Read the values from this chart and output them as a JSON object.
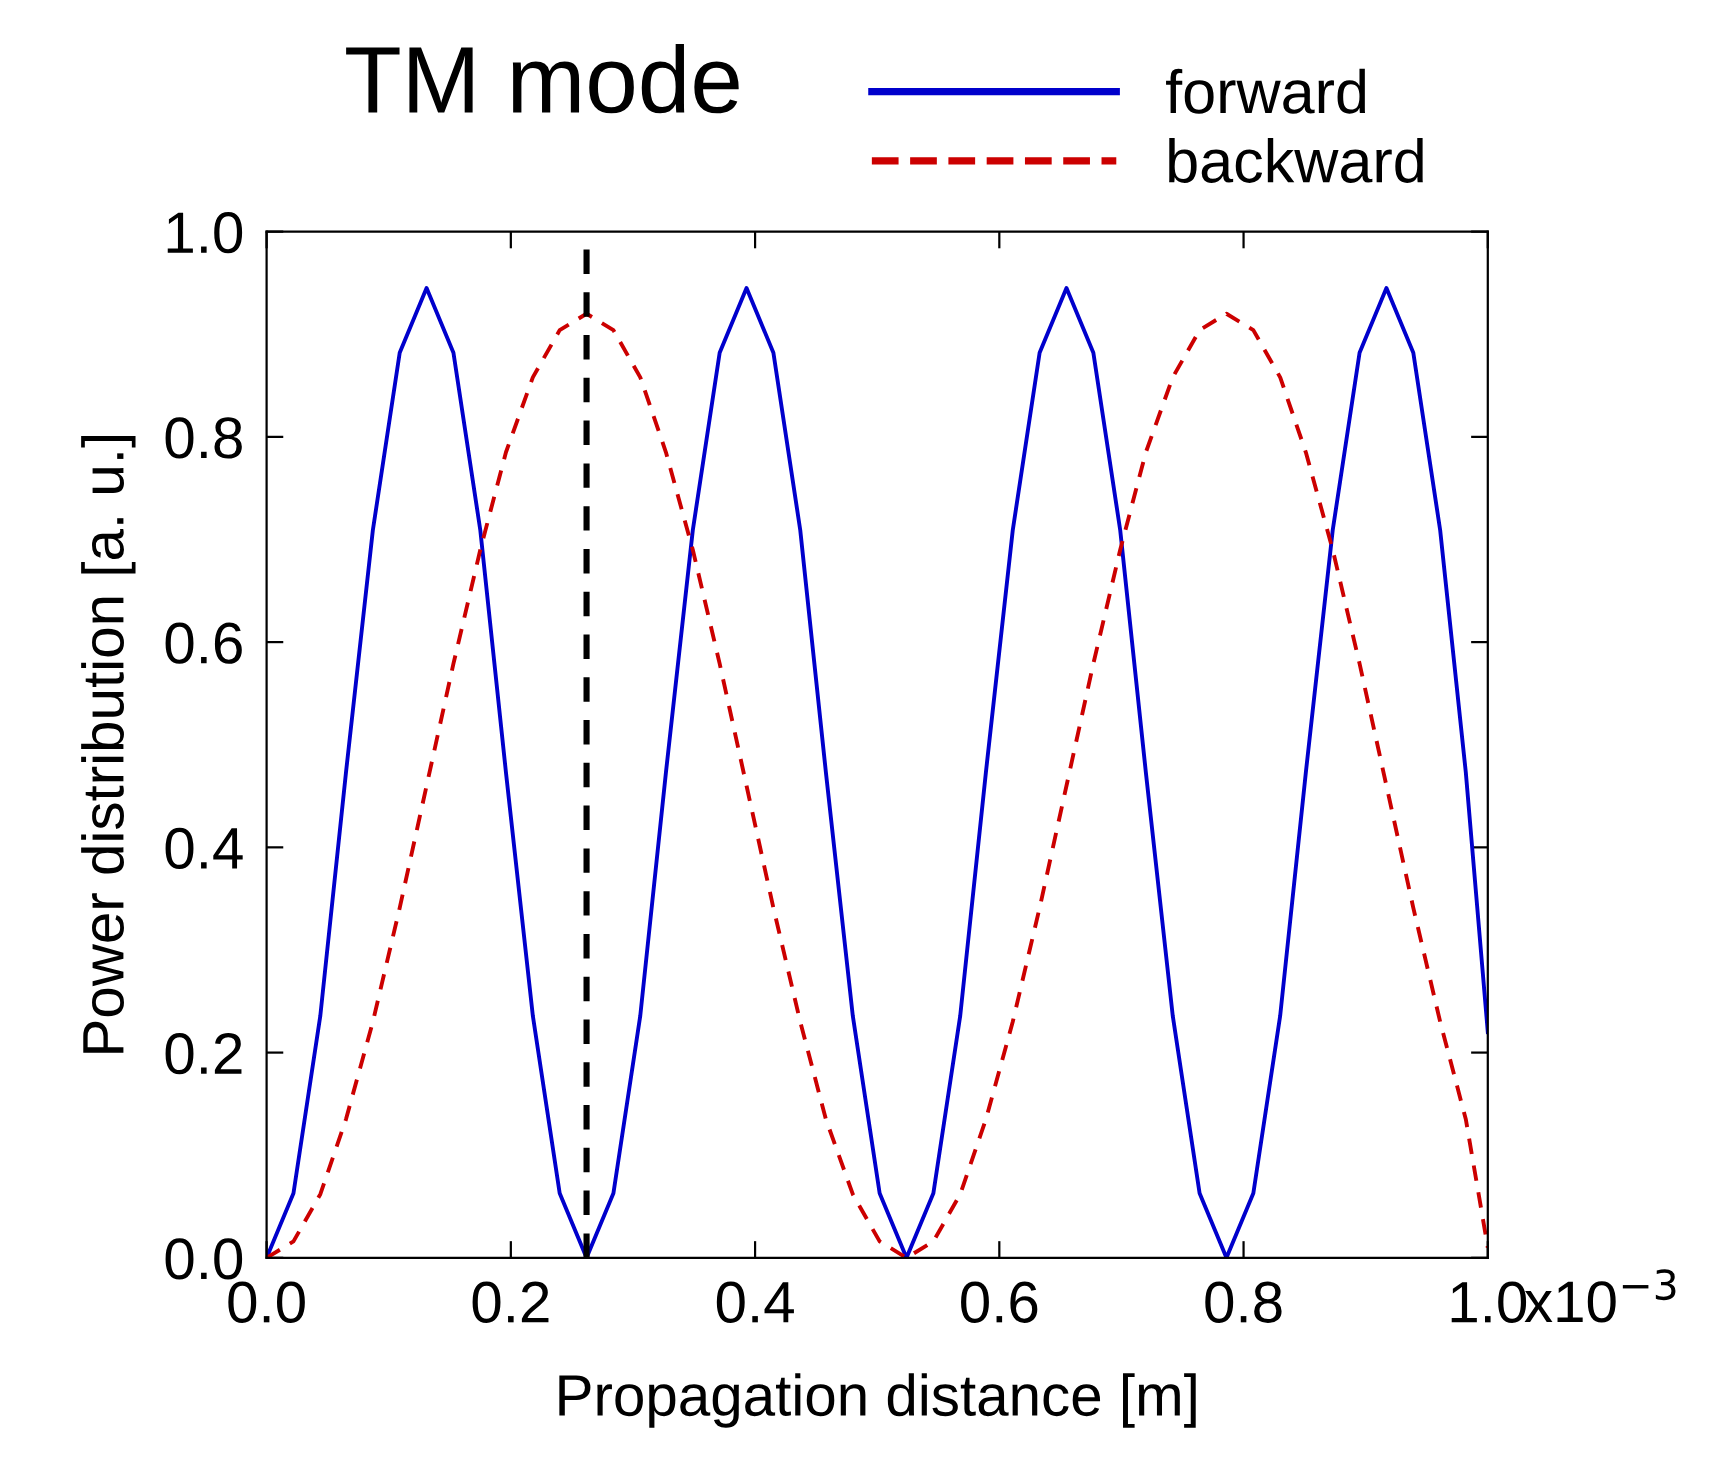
{
  "chart_data": {
    "type": "line",
    "title": "TM mode",
    "xlabel": "Propagation distance [m]",
    "ylabel": "Power distribution [a. u.]",
    "x": [
      0.0,
      0.022,
      0.044,
      0.065,
      0.087,
      0.109,
      0.131,
      0.153,
      0.175,
      0.196,
      0.218,
      0.24,
      0.262,
      0.284,
      0.306,
      0.327,
      0.349,
      0.371,
      0.393,
      0.415,
      0.437,
      0.458,
      0.48,
      0.502,
      0.524,
      0.546,
      0.568,
      0.589,
      0.611,
      0.633,
      0.655,
      0.677,
      0.699,
      0.72,
      0.742,
      0.764,
      0.786,
      0.808,
      0.83,
      0.851,
      0.873,
      0.895,
      0.917,
      0.939,
      0.961,
      0.982,
      1.0
    ],
    "series": [
      {
        "name": "forward",
        "color": "#0000cc",
        "line_style": "solid",
        "values": [
          0,
          0.063,
          0.236,
          0.473,
          0.709,
          0.882,
          0.945,
          0.882,
          0.709,
          0.473,
          0.236,
          0.063,
          0,
          0.063,
          0.236,
          0.473,
          0.709,
          0.882,
          0.945,
          0.882,
          0.709,
          0.473,
          0.236,
          0.063,
          0,
          0.063,
          0.236,
          0.473,
          0.709,
          0.882,
          0.945,
          0.882,
          0.709,
          0.473,
          0.236,
          0.063,
          0,
          0.063,
          0.236,
          0.473,
          0.709,
          0.882,
          0.945,
          0.882,
          0.709,
          0.473,
          0.22
        ]
      },
      {
        "name": "backward",
        "color": "#cc0000",
        "line_style": "dashed",
        "values": [
          0,
          0.016,
          0.062,
          0.135,
          0.23,
          0.341,
          0.46,
          0.579,
          0.69,
          0.785,
          0.858,
          0.904,
          0.92,
          0.904,
          0.858,
          0.785,
          0.69,
          0.579,
          0.46,
          0.341,
          0.23,
          0.135,
          0.062,
          0.016,
          0,
          0.016,
          0.062,
          0.135,
          0.23,
          0.341,
          0.46,
          0.579,
          0.69,
          0.785,
          0.858,
          0.904,
          0.92,
          0.904,
          0.858,
          0.785,
          0.69,
          0.579,
          0.46,
          0.341,
          0.23,
          0.135,
          0.01
        ]
      }
    ],
    "xlim": [
      0,
      1.0
    ],
    "xticks": [
      {
        "value": 0,
        "label": "0.0"
      },
      {
        "value": 0.2,
        "label": "0.2"
      },
      {
        "value": 0.4,
        "label": "0.4"
      },
      {
        "value": 0.6,
        "label": "0.6"
      },
      {
        "value": 0.8,
        "label": "0.8"
      },
      {
        "value": 1.0,
        "label": "1.0"
      }
    ],
    "annotations": [
      "x10$^{−3}$"
    ],
    "ylim": [
      0,
      1.0
    ],
    "yticks": [
      {
        "value": 0,
        "label": "0.0"
      },
      {
        "value": 0.2,
        "label": "0.2"
      },
      {
        "value": 0.4,
        "label": "0.4"
      },
      {
        "value": 0.6,
        "label": "0.6"
      },
      {
        "value": 0.8,
        "label": "0.8"
      },
      {
        "value": 1.0,
        "label": "1.0"
      }
    ],
    "ref_lines": [
      {
        "axis": "x",
        "value": 0.262,
        "color": "#000000",
        "line_style": "dashed"
      }
    ],
    "legend": "top right",
    "grid": false,
    "marker": "none"
  }
}
